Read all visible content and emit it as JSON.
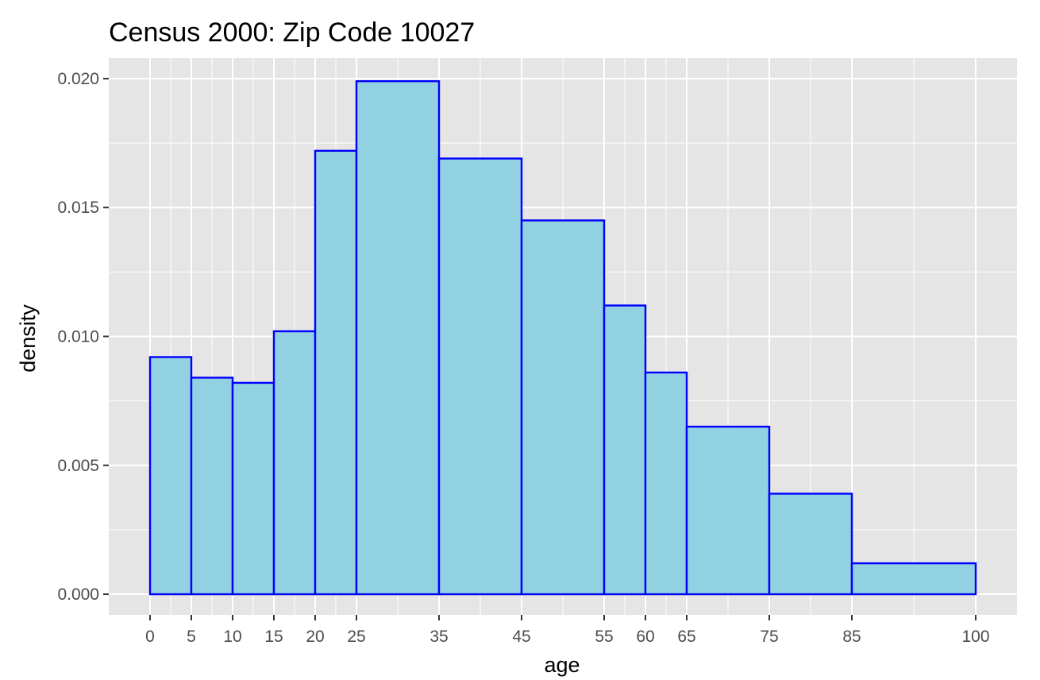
{
  "chart_data": {
    "type": "bar",
    "title": "Census 2000: Zip Code 10027",
    "xlabel": "age",
    "ylabel": "density",
    "xlim": [
      -5,
      105
    ],
    "ylim": [
      -0.0008,
      0.0208
    ],
    "grid": true,
    "legend": "none",
    "colors": {
      "fill": "#92d1e1",
      "stroke": "#0000ff",
      "panel": "#e5e5e5",
      "grid": "#ffffff",
      "tick_text": "#4d4d4d"
    },
    "bins": [
      {
        "start": 0,
        "end": 5,
        "density": 0.0092
      },
      {
        "start": 5,
        "end": 10,
        "density": 0.0084
      },
      {
        "start": 10,
        "end": 15,
        "density": 0.0082
      },
      {
        "start": 15,
        "end": 20,
        "density": 0.0102
      },
      {
        "start": 20,
        "end": 25,
        "density": 0.0172
      },
      {
        "start": 25,
        "end": 35,
        "density": 0.0199
      },
      {
        "start": 35,
        "end": 45,
        "density": 0.0169
      },
      {
        "start": 45,
        "end": 55,
        "density": 0.0145
      },
      {
        "start": 55,
        "end": 60,
        "density": 0.0112
      },
      {
        "start": 60,
        "end": 65,
        "density": 0.0086
      },
      {
        "start": 65,
        "end": 75,
        "density": 0.0065
      },
      {
        "start": 75,
        "end": 85,
        "density": 0.0039
      },
      {
        "start": 85,
        "end": 100,
        "density": 0.0012
      }
    ],
    "x_ticks": [
      {
        "value": 0,
        "label": "0"
      },
      {
        "value": 5,
        "label": "5"
      },
      {
        "value": 10,
        "label": "10"
      },
      {
        "value": 15,
        "label": "15"
      },
      {
        "value": 20,
        "label": "20"
      },
      {
        "value": 25,
        "label": "25"
      },
      {
        "value": 35,
        "label": "35"
      },
      {
        "value": 45,
        "label": "45"
      },
      {
        "value": 55,
        "label": "55"
      },
      {
        "value": 60,
        "label": "60"
      },
      {
        "value": 65,
        "label": "65"
      },
      {
        "value": 75,
        "label": "75"
      },
      {
        "value": 85,
        "label": "85"
      },
      {
        "value": 100,
        "label": "100"
      }
    ],
    "y_ticks": [
      {
        "value": 0.0,
        "label": "0.000"
      },
      {
        "value": 0.005,
        "label": "0.005"
      },
      {
        "value": 0.01,
        "label": "0.010"
      },
      {
        "value": 0.015,
        "label": "0.015"
      },
      {
        "value": 0.02,
        "label": "0.020"
      }
    ]
  }
}
